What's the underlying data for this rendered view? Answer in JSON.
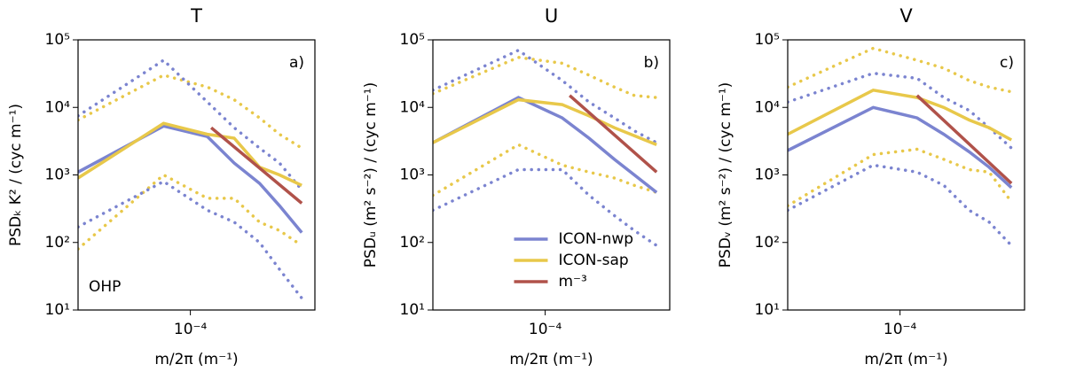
{
  "chart_data": [
    {
      "type": "line",
      "title": "T",
      "xlabel": "m/2π (m⁻¹)",
      "ylabel": "PSDₖ K² / (cyc m⁻¹)",
      "log_x": true,
      "log_y": true,
      "xlim": [
        3e-05,
        0.00038
      ],
      "ylim": [
        10,
        100000
      ],
      "xticks": [
        {
          "value": 0.0001,
          "label": "10⁻⁴"
        }
      ],
      "yticks": [
        {
          "value": 10,
          "label": "10¹"
        },
        {
          "value": 100,
          "label": "10²"
        },
        {
          "value": 1000,
          "label": "10³"
        },
        {
          "value": 10000,
          "label": "10⁴"
        },
        {
          "value": 100000,
          "label": "10⁵"
        }
      ],
      "x": [
        3e-05,
        7.5e-05,
        0.00012,
        0.00016,
        0.00021,
        0.00026,
        0.00033
      ],
      "annotations": [
        {
          "text": "a)",
          "loc": "upper right"
        },
        {
          "text": "OHP",
          "loc": "lower left"
        }
      ],
      "series": [
        {
          "color": "#e8c84a",
          "style": "dotted",
          "values": [
            6500,
            30000,
            20000,
            13000,
            7000,
            4000,
            2500
          ]
        },
        {
          "color": "#e8c84a",
          "style": "dotted",
          "values": [
            80,
            1000,
            450,
            450,
            200,
            150,
            90
          ]
        },
        {
          "color": "#7b84d0",
          "style": "dotted",
          "values": [
            7500,
            50000,
            12000,
            5000,
            2500,
            1500,
            600
          ]
        },
        {
          "color": "#7b84d0",
          "style": "dotted",
          "values": [
            170,
            800,
            300,
            200,
            100,
            40,
            15
          ]
        },
        {
          "name": "ICON-nwp",
          "color": "#7b84d0",
          "style": "solid",
          "values": [
            1100,
            5300,
            3700,
            1500,
            750,
            350,
            140
          ]
        },
        {
          "name": "ICON-sap",
          "color": "#e8c84a",
          "style": "solid",
          "values": [
            900,
            5800,
            4000,
            3500,
            1300,
            1000,
            700
          ]
        },
        {
          "name": "m⁻³",
          "color": "#b0524a",
          "style": "solid",
          "x": [
            0.000125,
            0.00033
          ],
          "values": [
            5000,
            380
          ]
        }
      ]
    },
    {
      "type": "line",
      "title": "U",
      "xlabel": "m/2π (m⁻¹)",
      "ylabel": "PSDᵤ (m² s⁻²) / (cyc m⁻¹)",
      "log_x": true,
      "log_y": true,
      "xlim": [
        3e-05,
        0.00038
      ],
      "ylim": [
        10,
        100000
      ],
      "xticks": [
        {
          "value": 0.0001,
          "label": "10⁻⁴"
        }
      ],
      "yticks": [
        {
          "value": 10,
          "label": "10¹"
        },
        {
          "value": 100,
          "label": "10²"
        },
        {
          "value": 1000,
          "label": "10³"
        },
        {
          "value": 10000,
          "label": "10⁴"
        },
        {
          "value": 100000,
          "label": "10⁵"
        }
      ],
      "x": [
        3e-05,
        7.5e-05,
        0.00012,
        0.00016,
        0.00021,
        0.00026,
        0.00033
      ],
      "annotations": [
        {
          "text": "b)",
          "loc": "upper right"
        }
      ],
      "legend": "lower center",
      "series": [
        {
          "color": "#e8c84a",
          "style": "dotted",
          "values": [
            16000,
            55000,
            45000,
            30000,
            20000,
            15000,
            14000
          ]
        },
        {
          "color": "#e8c84a",
          "style": "dotted",
          "values": [
            500,
            2800,
            1400,
            1100,
            900,
            700,
            550
          ]
        },
        {
          "color": "#7b84d0",
          "style": "dotted",
          "values": [
            18000,
            70000,
            25000,
            12000,
            7000,
            4500,
            3000
          ]
        },
        {
          "color": "#7b84d0",
          "style": "dotted",
          "values": [
            300,
            1200,
            1200,
            500,
            250,
            150,
            90
          ]
        },
        {
          "name": "ICON-nwp",
          "color": "#7b84d0",
          "style": "solid",
          "values": [
            3000,
            14000,
            7000,
            3500,
            1700,
            1000,
            550
          ]
        },
        {
          "name": "ICON-sap",
          "color": "#e8c84a",
          "style": "solid",
          "values": [
            3000,
            13000,
            11000,
            7500,
            5000,
            3800,
            2800
          ]
        },
        {
          "name": "m⁻³",
          "color": "#b0524a",
          "style": "solid",
          "x": [
            0.00013,
            0.00033
          ],
          "values": [
            15000,
            1100
          ]
        }
      ]
    },
    {
      "type": "line",
      "title": "V",
      "xlabel": "m/2π (m⁻¹)",
      "ylabel": "PSDᵥ (m² s⁻²) / (cyc m⁻¹)",
      "log_x": true,
      "log_y": true,
      "xlim": [
        3e-05,
        0.00038
      ],
      "ylim": [
        10,
        100000
      ],
      "xticks": [
        {
          "value": 0.0001,
          "label": "10⁻⁴"
        }
      ],
      "yticks": [
        {
          "value": 10,
          "label": "10¹"
        },
        {
          "value": 100,
          "label": "10²"
        },
        {
          "value": 1000,
          "label": "10³"
        },
        {
          "value": 10000,
          "label": "10⁴"
        },
        {
          "value": 100000,
          "label": "10⁵"
        }
      ],
      "x": [
        3e-05,
        7.5e-05,
        0.00012,
        0.00016,
        0.00021,
        0.00026,
        0.00033
      ],
      "annotations": [
        {
          "text": "c)",
          "loc": "upper right"
        }
      ],
      "series": [
        {
          "color": "#e8c84a",
          "style": "dotted",
          "values": [
            20000,
            75000,
            50000,
            38000,
            25000,
            20000,
            17000
          ]
        },
        {
          "color": "#e8c84a",
          "style": "dotted",
          "values": [
            350,
            2000,
            2400,
            1700,
            1200,
            1100,
            400
          ]
        },
        {
          "color": "#7b84d0",
          "style": "dotted",
          "values": [
            12000,
            32000,
            27000,
            14000,
            9000,
            5000,
            2500
          ]
        },
        {
          "color": "#7b84d0",
          "style": "dotted",
          "values": [
            300,
            1400,
            1100,
            700,
            300,
            200,
            90
          ]
        },
        {
          "name": "ICON-nwp",
          "color": "#7b84d0",
          "style": "solid",
          "values": [
            2300,
            10000,
            7000,
            4000,
            2200,
            1300,
            650
          ]
        },
        {
          "name": "ICON-sap",
          "color": "#e8c84a",
          "style": "solid",
          "values": [
            4000,
            18000,
            14000,
            10000,
            6500,
            5000,
            3300
          ]
        },
        {
          "name": "m⁻³",
          "color": "#b0524a",
          "style": "solid",
          "x": [
            0.00012,
            0.00033
          ],
          "values": [
            15000,
            750
          ]
        }
      ]
    }
  ]
}
